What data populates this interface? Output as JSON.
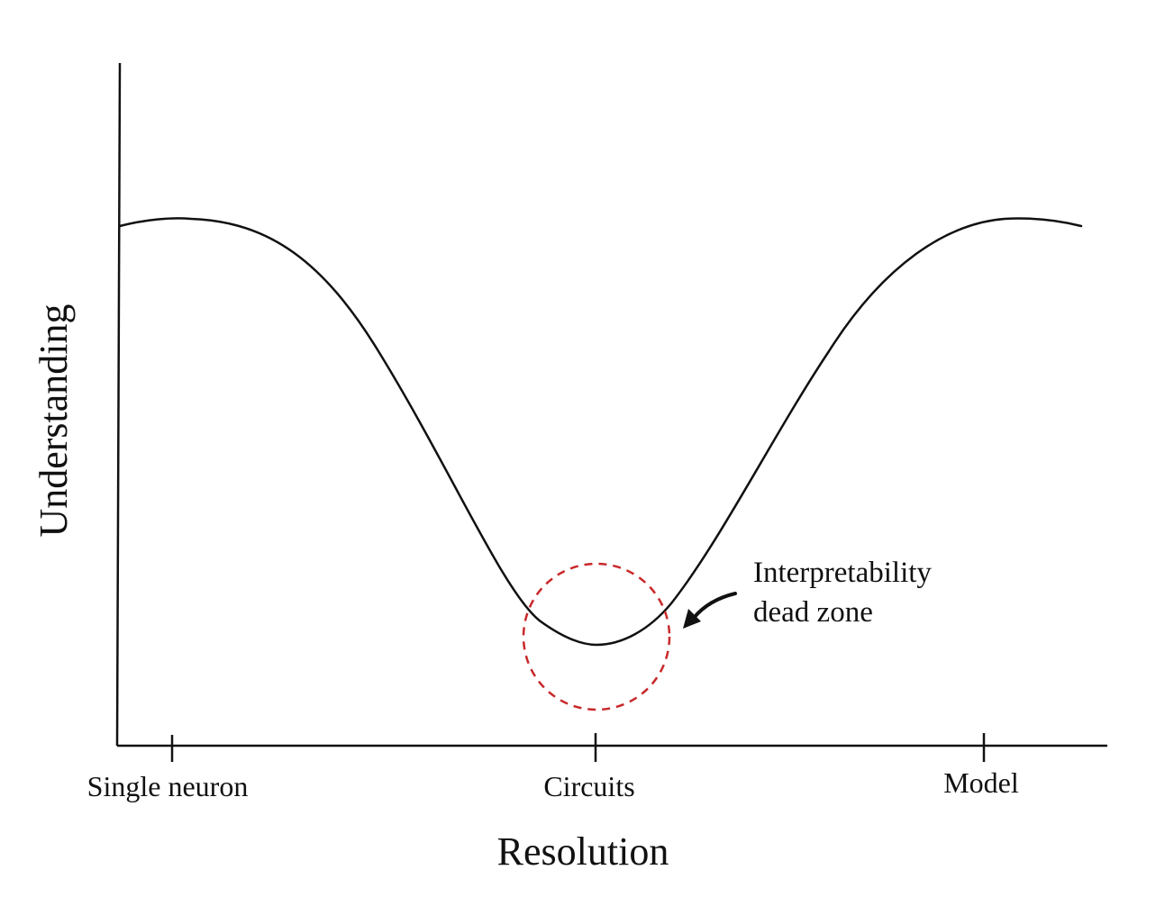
{
  "axes": {
    "x_title": "Resolution",
    "y_title": "Understanding"
  },
  "x_ticks": [
    {
      "label": "Single neuron"
    },
    {
      "label": "Circuits"
    },
    {
      "label": "Model"
    }
  ],
  "annotation": {
    "lines": [
      "Interpretability",
      "dead zone"
    ]
  },
  "colors": {
    "curve": "#111111",
    "axis": "#111111",
    "highlight_circle": "#c8282a",
    "background": "#ffffff"
  }
}
